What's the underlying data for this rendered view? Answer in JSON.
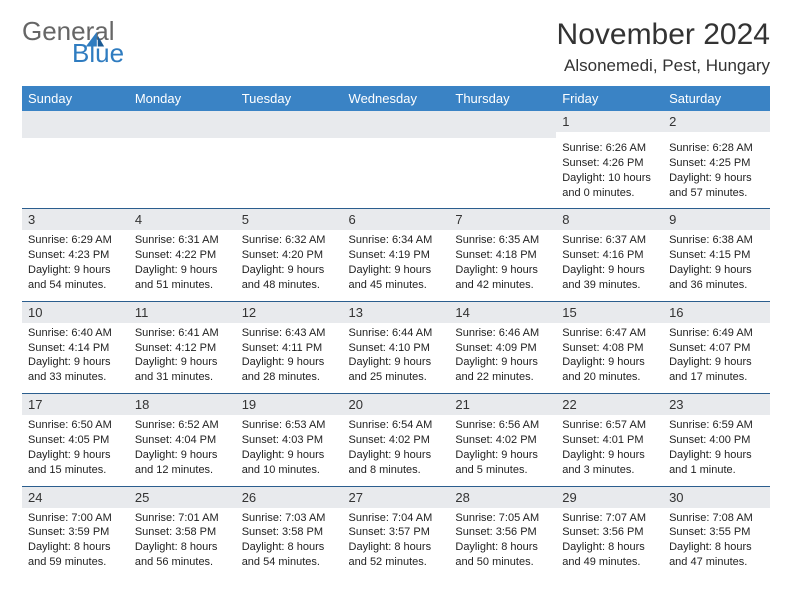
{
  "brand": {
    "line1": "General",
    "line2": "Blue"
  },
  "title": "November 2024",
  "location": "Alsonemedi, Pest, Hungary",
  "dow": [
    "Sunday",
    "Monday",
    "Tuesday",
    "Wednesday",
    "Thursday",
    "Friday",
    "Saturday"
  ],
  "colors": {
    "header_bg": "#3a83c5",
    "header_text": "#ffffff",
    "daynum_bg": "#e8eaed",
    "sep": "#2b5e8e",
    "brand_blue": "#2f7cc0",
    "text": "#222222"
  },
  "weeks": [
    [
      null,
      null,
      null,
      null,
      null,
      {
        "n": "1",
        "sr": "6:26 AM",
        "ss": "4:26 PM",
        "dl": "10 hours and 0 minutes."
      },
      {
        "n": "2",
        "sr": "6:28 AM",
        "ss": "4:25 PM",
        "dl": "9 hours and 57 minutes."
      }
    ],
    [
      {
        "n": "3",
        "sr": "6:29 AM",
        "ss": "4:23 PM",
        "dl": "9 hours and 54 minutes."
      },
      {
        "n": "4",
        "sr": "6:31 AM",
        "ss": "4:22 PM",
        "dl": "9 hours and 51 minutes."
      },
      {
        "n": "5",
        "sr": "6:32 AM",
        "ss": "4:20 PM",
        "dl": "9 hours and 48 minutes."
      },
      {
        "n": "6",
        "sr": "6:34 AM",
        "ss": "4:19 PM",
        "dl": "9 hours and 45 minutes."
      },
      {
        "n": "7",
        "sr": "6:35 AM",
        "ss": "4:18 PM",
        "dl": "9 hours and 42 minutes."
      },
      {
        "n": "8",
        "sr": "6:37 AM",
        "ss": "4:16 PM",
        "dl": "9 hours and 39 minutes."
      },
      {
        "n": "9",
        "sr": "6:38 AM",
        "ss": "4:15 PM",
        "dl": "9 hours and 36 minutes."
      }
    ],
    [
      {
        "n": "10",
        "sr": "6:40 AM",
        "ss": "4:14 PM",
        "dl": "9 hours and 33 minutes."
      },
      {
        "n": "11",
        "sr": "6:41 AM",
        "ss": "4:12 PM",
        "dl": "9 hours and 31 minutes."
      },
      {
        "n": "12",
        "sr": "6:43 AM",
        "ss": "4:11 PM",
        "dl": "9 hours and 28 minutes."
      },
      {
        "n": "13",
        "sr": "6:44 AM",
        "ss": "4:10 PM",
        "dl": "9 hours and 25 minutes."
      },
      {
        "n": "14",
        "sr": "6:46 AM",
        "ss": "4:09 PM",
        "dl": "9 hours and 22 minutes."
      },
      {
        "n": "15",
        "sr": "6:47 AM",
        "ss": "4:08 PM",
        "dl": "9 hours and 20 minutes."
      },
      {
        "n": "16",
        "sr": "6:49 AM",
        "ss": "4:07 PM",
        "dl": "9 hours and 17 minutes."
      }
    ],
    [
      {
        "n": "17",
        "sr": "6:50 AM",
        "ss": "4:05 PM",
        "dl": "9 hours and 15 minutes."
      },
      {
        "n": "18",
        "sr": "6:52 AM",
        "ss": "4:04 PM",
        "dl": "9 hours and 12 minutes."
      },
      {
        "n": "19",
        "sr": "6:53 AM",
        "ss": "4:03 PM",
        "dl": "9 hours and 10 minutes."
      },
      {
        "n": "20",
        "sr": "6:54 AM",
        "ss": "4:02 PM",
        "dl": "9 hours and 8 minutes."
      },
      {
        "n": "21",
        "sr": "6:56 AM",
        "ss": "4:02 PM",
        "dl": "9 hours and 5 minutes."
      },
      {
        "n": "22",
        "sr": "6:57 AM",
        "ss": "4:01 PM",
        "dl": "9 hours and 3 minutes."
      },
      {
        "n": "23",
        "sr": "6:59 AM",
        "ss": "4:00 PM",
        "dl": "9 hours and 1 minute."
      }
    ],
    [
      {
        "n": "24",
        "sr": "7:00 AM",
        "ss": "3:59 PM",
        "dl": "8 hours and 59 minutes."
      },
      {
        "n": "25",
        "sr": "7:01 AM",
        "ss": "3:58 PM",
        "dl": "8 hours and 56 minutes."
      },
      {
        "n": "26",
        "sr": "7:03 AM",
        "ss": "3:58 PM",
        "dl": "8 hours and 54 minutes."
      },
      {
        "n": "27",
        "sr": "7:04 AM",
        "ss": "3:57 PM",
        "dl": "8 hours and 52 minutes."
      },
      {
        "n": "28",
        "sr": "7:05 AM",
        "ss": "3:56 PM",
        "dl": "8 hours and 50 minutes."
      },
      {
        "n": "29",
        "sr": "7:07 AM",
        "ss": "3:56 PM",
        "dl": "8 hours and 49 minutes."
      },
      {
        "n": "30",
        "sr": "7:08 AM",
        "ss": "3:55 PM",
        "dl": "8 hours and 47 minutes."
      }
    ]
  ],
  "labels": {
    "sunrise": "Sunrise: ",
    "sunset": "Sunset: ",
    "daylight": "Daylight: "
  }
}
